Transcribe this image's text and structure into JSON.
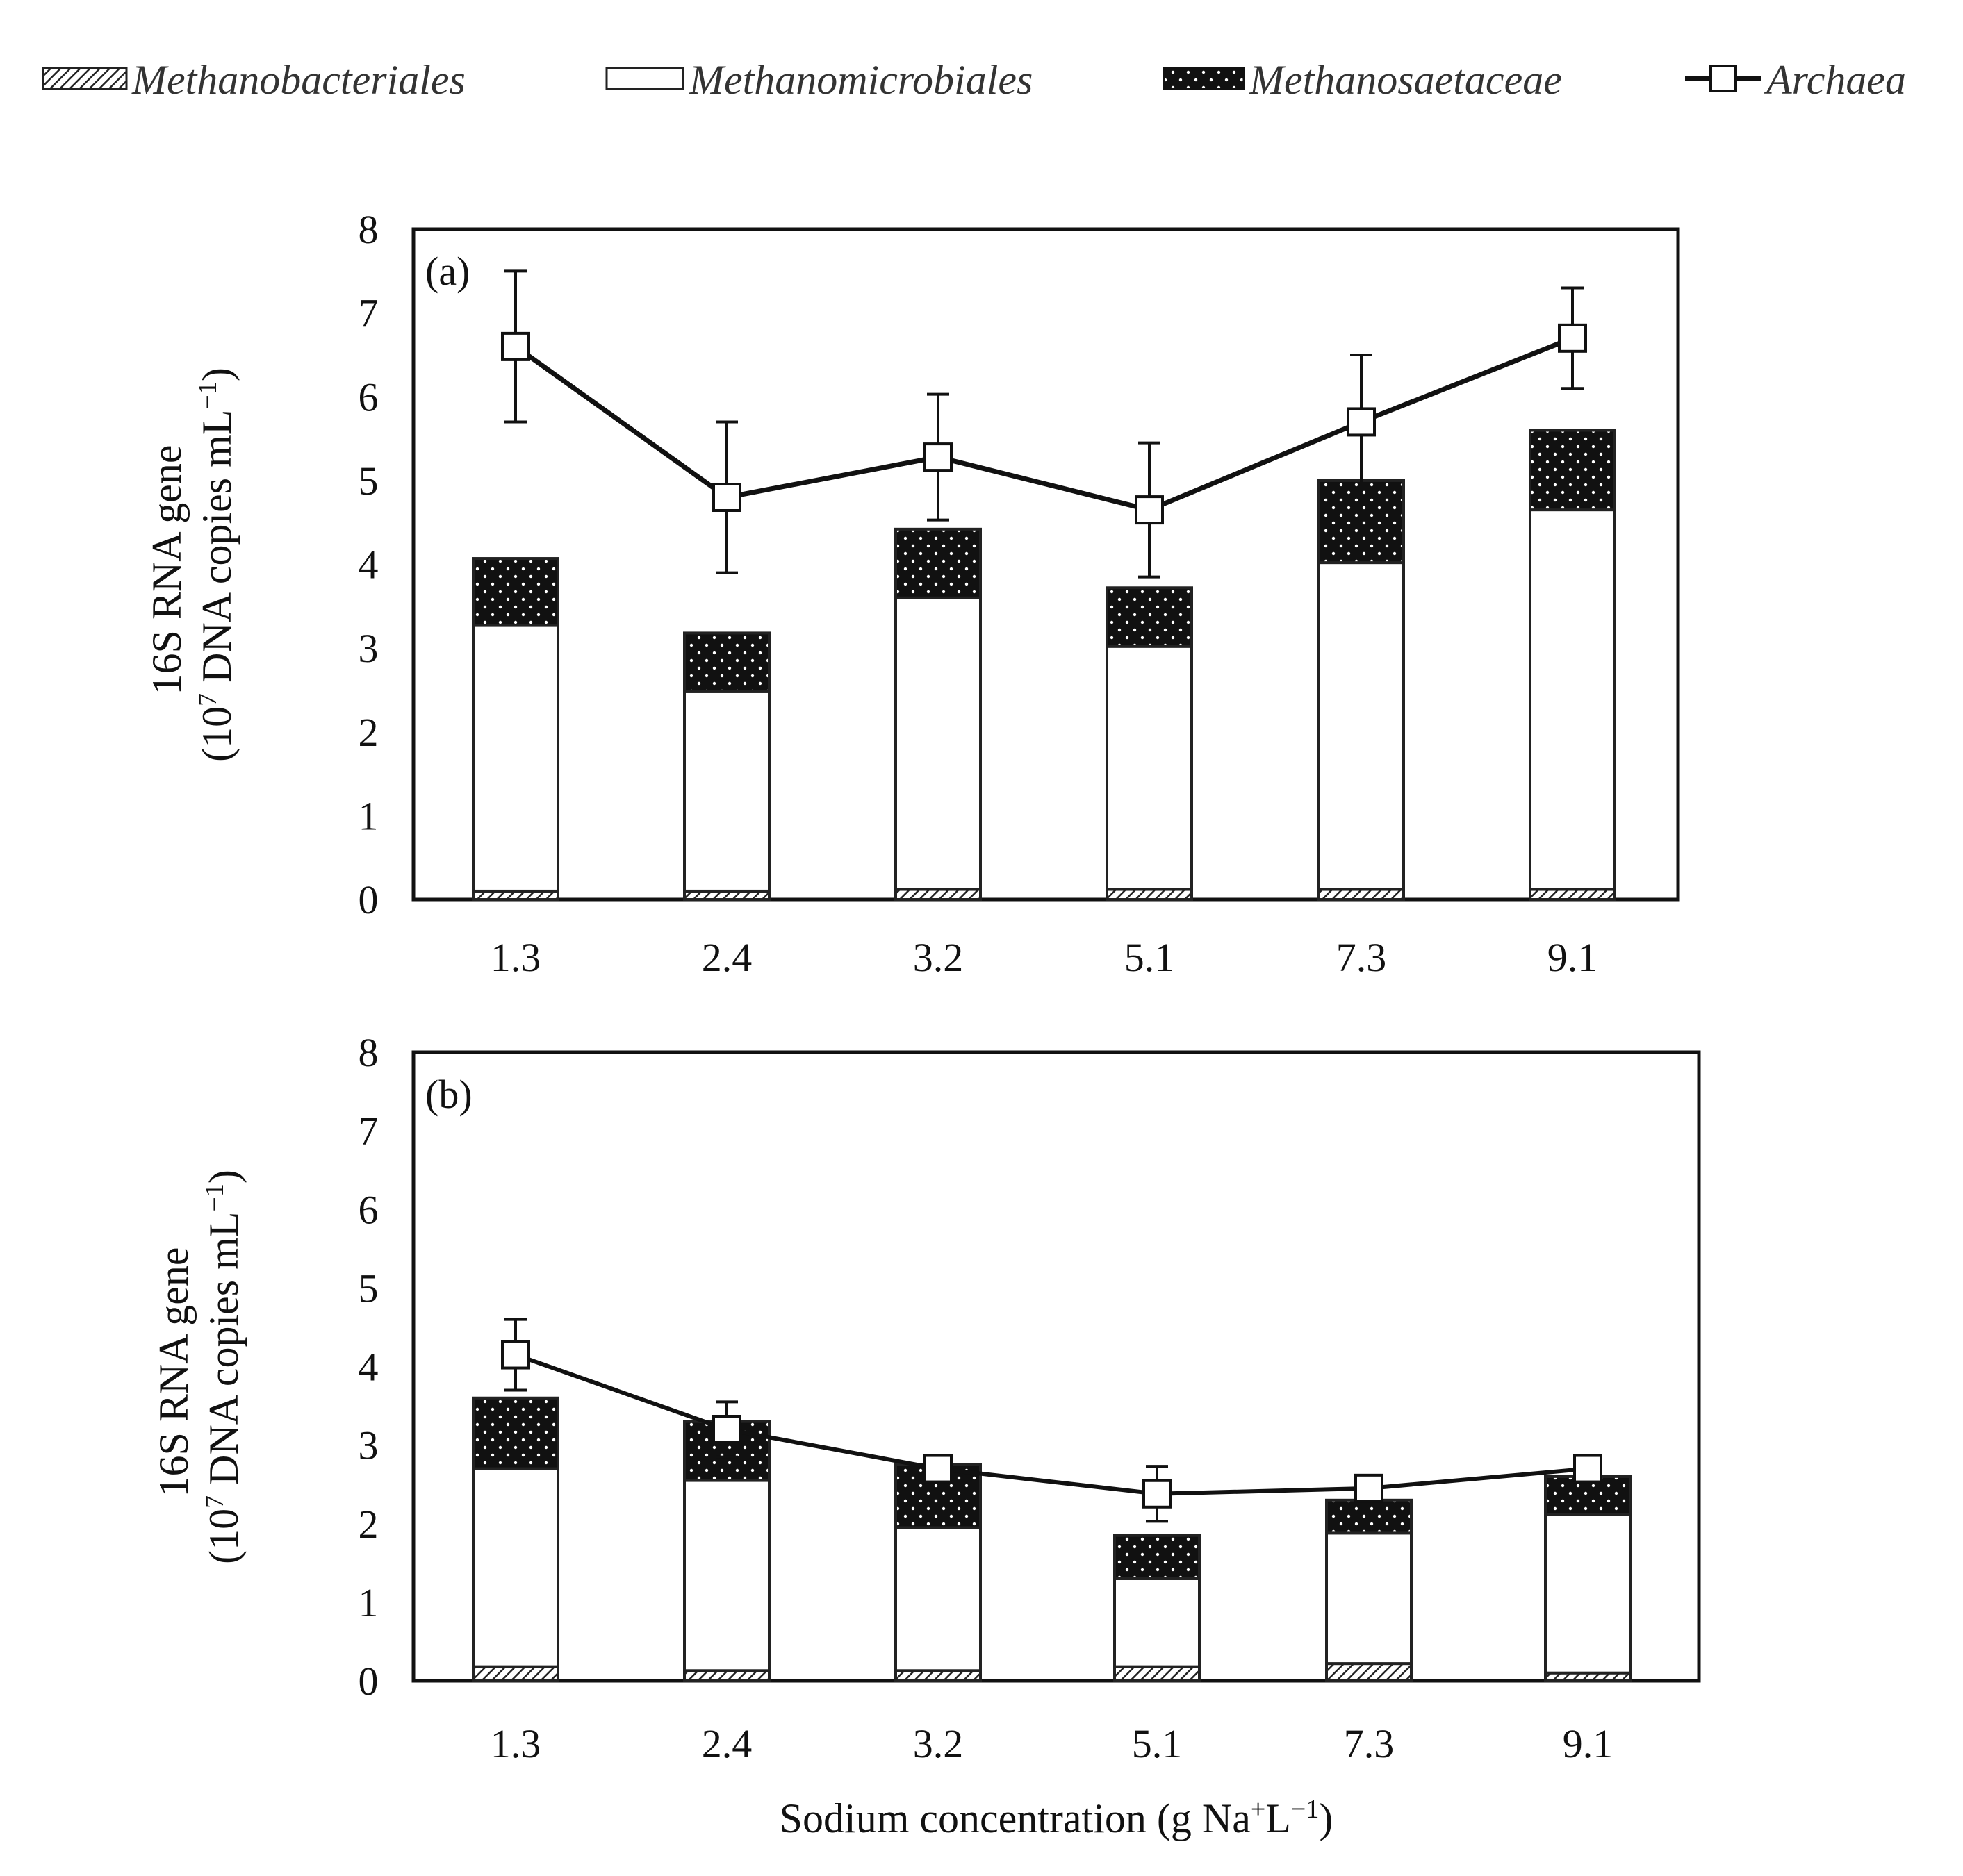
{
  "legend": [
    {
      "name": "Methanobacteriales",
      "pattern": "hatch"
    },
    {
      "name": "Methanomicrobiales",
      "pattern": "open"
    },
    {
      "name": "Methanosaetaceae",
      "pattern": "dots"
    },
    {
      "name": "Archaea",
      "pattern": "line-square"
    }
  ],
  "axes": {
    "y_title_line1": "16S RNA gene",
    "y_title_line2_prefix": "(10",
    "y_title_line2_sup": "7",
    "y_title_line2_mid": " DNA copies mL",
    "y_title_line2_sup2": "−1",
    "y_title_line2_suffix": ")",
    "x_title_prefix": "Sodium concentration (g Na",
    "x_title_sup": "+",
    "x_title_mid": "L",
    "x_title_sup2": "−1",
    "x_title_suffix": ")"
  },
  "colors": {
    "bar_stroke": "#222222",
    "fill": "#ffffff",
    "dark": "#111111",
    "line": "#111111"
  },
  "chart_data": [
    {
      "type": "bar",
      "stacked": true,
      "panel_label": "(a)",
      "categories": [
        "1.3",
        "2.4",
        "3.2",
        "5.1",
        "7.3",
        "9.1"
      ],
      "ylim": [
        0,
        8
      ],
      "yticks": [
        "0",
        "1",
        "2",
        "3",
        "4",
        "5",
        "6",
        "7",
        "8"
      ],
      "series": [
        {
          "name": "Methanobacteriales",
          "values": [
            0.1,
            0.1,
            0.12,
            0.12,
            0.12,
            0.12
          ]
        },
        {
          "name": "Methanomicrobiales",
          "values": [
            3.17,
            2.38,
            3.48,
            2.9,
            3.9,
            4.53
          ]
        },
        {
          "name": "Methanosaetaceae",
          "values": [
            0.8,
            0.7,
            0.82,
            0.7,
            0.98,
            0.95
          ]
        }
      ],
      "line": {
        "name": "Archaea",
        "values": [
          6.6,
          4.8,
          5.28,
          4.65,
          5.7,
          6.7
        ],
        "errors": [
          0.9,
          0.9,
          0.75,
          0.8,
          0.8,
          0.6
        ]
      }
    },
    {
      "type": "bar",
      "stacked": true,
      "panel_label": "(b)",
      "categories": [
        "1.3",
        "2.4",
        "3.2",
        "5.1",
        "7.3",
        "9.1"
      ],
      "ylim": [
        0,
        8
      ],
      "yticks": [
        "0",
        "1",
        "2",
        "3",
        "4",
        "5",
        "6",
        "7",
        "8"
      ],
      "series": [
        {
          "name": "Methanobacteriales",
          "values": [
            0.18,
            0.13,
            0.13,
            0.18,
            0.22,
            0.1
          ]
        },
        {
          "name": "Methanomicrobiales",
          "values": [
            2.52,
            2.42,
            1.82,
            1.12,
            1.66,
            2.02
          ]
        },
        {
          "name": "Methanosaetaceae",
          "values": [
            0.9,
            0.75,
            0.8,
            0.55,
            0.42,
            0.48
          ]
        }
      ],
      "line": {
        "name": "Archaea",
        "values": [
          4.15,
          3.2,
          2.7,
          2.38,
          2.45,
          2.7
        ],
        "errors": [
          0.45,
          0.35,
          0.1,
          0.35,
          0.15,
          0.1
        ]
      }
    }
  ]
}
